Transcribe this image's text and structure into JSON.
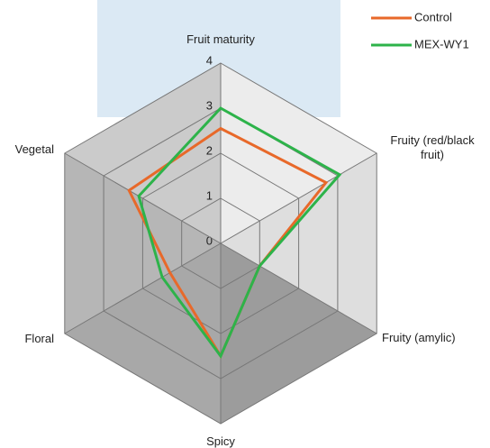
{
  "chart_data": {
    "type": "radar",
    "axes": [
      "Fruit maturity",
      "Fruity (red/black fruit)",
      "Fruity (amylic)",
      "Spicy",
      "Floral",
      "Vegetal"
    ],
    "rlim": [
      0,
      4
    ],
    "rticks": [
      0,
      1,
      2,
      3,
      4
    ],
    "series": [
      {
        "name": "Control",
        "color": "#e8692a",
        "values": [
          2.55,
          2.7,
          1.0,
          2.5,
          1.3,
          2.35
        ]
      },
      {
        "name": "MEX-WY1",
        "color": "#2db34a",
        "values": [
          3.0,
          3.05,
          1.0,
          2.5,
          1.5,
          2.1
        ]
      }
    ]
  }
}
